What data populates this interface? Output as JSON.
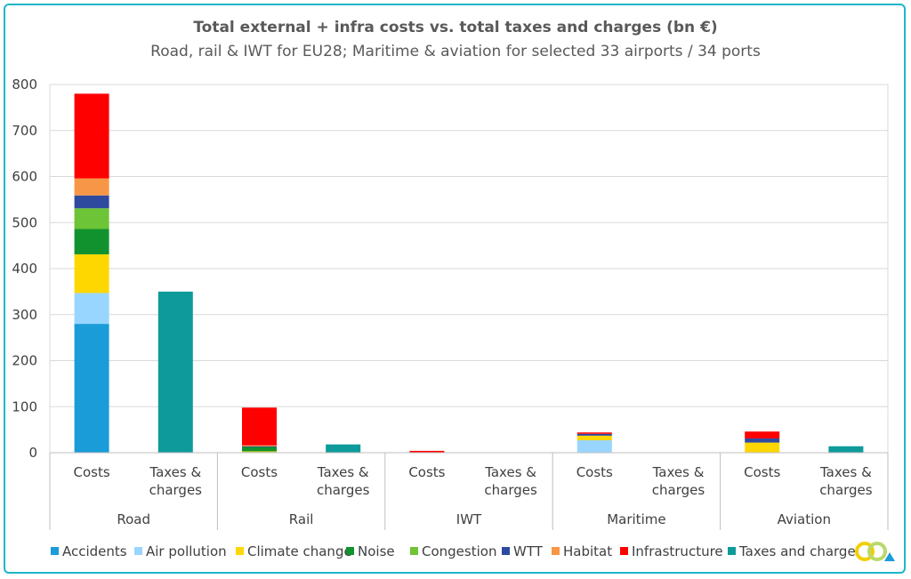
{
  "chart_data": {
    "type": "bar",
    "stacked": true,
    "title": "Total external + infra costs vs. total taxes and charges (bn €)",
    "subtitle": "Road, rail & IWT for EU28; Maritime & aviation for selected 33 airports / 34 ports",
    "ylim": [
      0,
      800
    ],
    "yticks": [
      0,
      100,
      200,
      300,
      400,
      500,
      600,
      700,
      800
    ],
    "grid": true,
    "legend_position": "bottom",
    "groups": [
      "Road",
      "Rail",
      "IWT",
      "Maritime",
      "Aviation"
    ],
    "subcategories": [
      [
        "Costs",
        "Taxes &",
        "charges"
      ]
    ],
    "sub_labels": {
      "costs": "Costs",
      "taxes_line1": "Taxes &",
      "taxes_line2": "charges"
    },
    "series": [
      {
        "name": "Accidents",
        "color": "#1a9cd8",
        "values": [
          280,
          0,
          0,
          0,
          0,
          0,
          0,
          0,
          0,
          0
        ]
      },
      {
        "name": "Air pollution",
        "color": "#99d6ff",
        "values": [
          67,
          0,
          2,
          0,
          0.5,
          0,
          27,
          0,
          0,
          0
        ]
      },
      {
        "name": "Climate change",
        "color": "#ffd700",
        "values": [
          84,
          0,
          1,
          0,
          0.5,
          0,
          10,
          0,
          22,
          0
        ]
      },
      {
        "name": "Noise",
        "color": "#12922f",
        "values": [
          55,
          0,
          10,
          0,
          0,
          0,
          0,
          0,
          0,
          0
        ]
      },
      {
        "name": "Congestion",
        "color": "#6dc436",
        "values": [
          45,
          0,
          0,
          0,
          0,
          0,
          0,
          0,
          0,
          0
        ]
      },
      {
        "name": "WTT",
        "color": "#2e4a9e",
        "values": [
          28,
          0,
          1,
          0,
          0,
          0,
          4,
          0,
          9,
          0
        ]
      },
      {
        "name": "Habitat",
        "color": "#f79646",
        "values": [
          37,
          0,
          2,
          0,
          0,
          0,
          0,
          0,
          0,
          0
        ]
      },
      {
        "name": "Infrastructure",
        "color": "#ff0000",
        "values": [
          184,
          0,
          82,
          0,
          3,
          0,
          3,
          0,
          15,
          0
        ]
      },
      {
        "name": "Taxes and charges",
        "color": "#0e9a9a",
        "values": [
          0,
          350,
          0,
          18,
          0,
          0,
          0,
          0,
          0,
          14
        ]
      }
    ],
    "legend_visible_text": [
      "Accidents",
      "Air pollution",
      "Climate change",
      "Noise",
      "Congestion",
      "WTT",
      "Habitat",
      "Infrastructure",
      "Taxes and charge"
    ]
  }
}
